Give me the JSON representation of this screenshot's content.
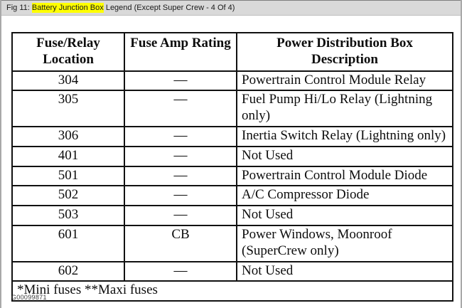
{
  "window": {
    "title_prefix": "Fig 11: ",
    "title_highlight": "Battery Junction Box",
    "title_suffix": " Legend (Except Super Crew - 4 Of 4)",
    "highlight_color": "#ffff00",
    "bar_color": "#d9d9d9"
  },
  "table": {
    "headers": [
      "Fuse/Relay Location",
      "Fuse Amp Rating",
      "Power Distribution Box Description"
    ],
    "rows": [
      {
        "location": "304",
        "rating": "—",
        "description": "Powertrain Control Module Relay"
      },
      {
        "location": "305",
        "rating": "—",
        "description": "Fuel Pump Hi/Lo Relay (Lightning only)"
      },
      {
        "location": "306",
        "rating": "—",
        "description": "Inertia Switch Relay (Lightning only)"
      },
      {
        "location": "401",
        "rating": "—",
        "description": "Not Used"
      },
      {
        "location": "501",
        "rating": "—",
        "description": "Powertrain Control Module Diode"
      },
      {
        "location": "502",
        "rating": "—",
        "description": "A/C Compressor Diode"
      },
      {
        "location": "503",
        "rating": "—",
        "description": "Not Used"
      },
      {
        "location": "601",
        "rating": "CB",
        "description": "Power Windows, Moonroof (SuperCrew only)"
      },
      {
        "location": "602",
        "rating": "—",
        "description": "Not Used"
      }
    ],
    "footnote": "*Mini fuses **Maxi fuses"
  },
  "figure_id": "G00099871"
}
